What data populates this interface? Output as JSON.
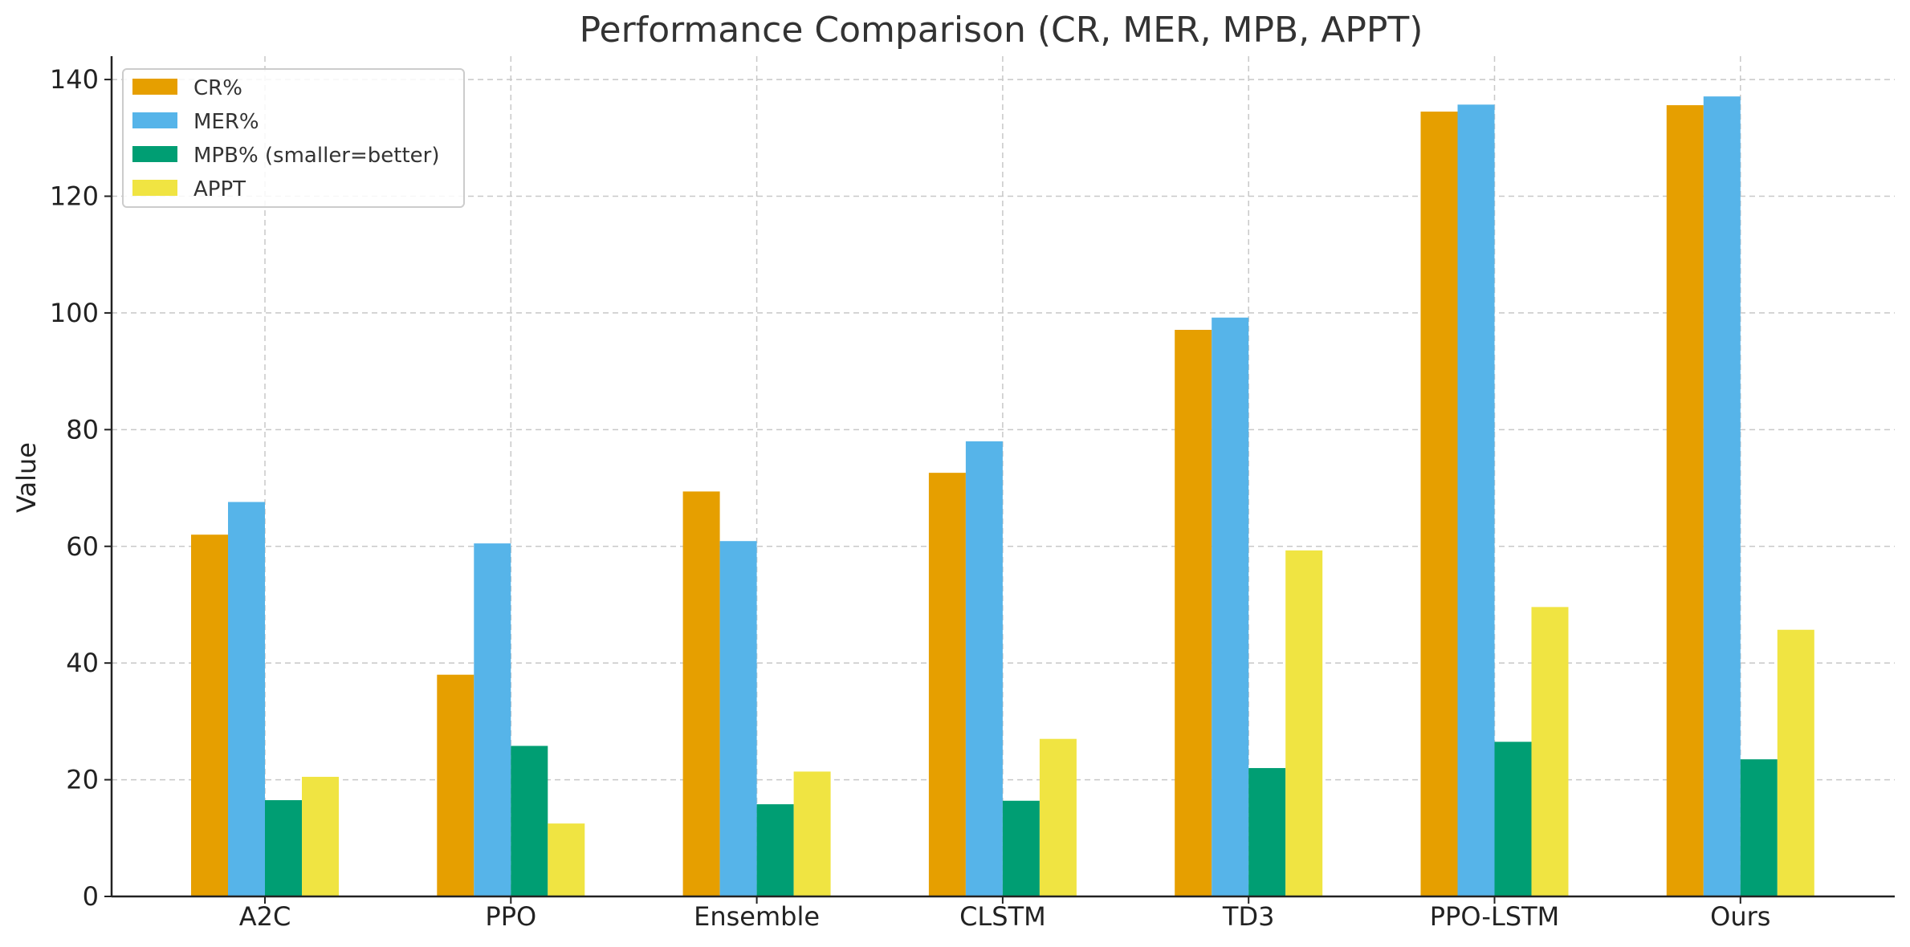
{
  "chart_data": {
    "type": "bar",
    "title": "Performance Comparison (CR, MER, MPB, APPT)",
    "xlabel": "",
    "ylabel": "Value",
    "categories": [
      "A2C",
      "PPO",
      "Ensemble",
      "CLSTM",
      "TD3",
      "PPO-LSTM",
      "Ours"
    ],
    "series": [
      {
        "name": "CR%",
        "color": "#E69F00",
        "values": [
          62,
          38,
          69.4,
          72.6,
          97.1,
          134.5,
          135.6
        ]
      },
      {
        "name": "MER%",
        "color": "#56B4E9",
        "values": [
          67.6,
          60.5,
          60.9,
          78,
          99.2,
          135.7,
          137.1
        ]
      },
      {
        "name": "MPB% (smaller=better)",
        "color": "#009E73",
        "values": [
          16.5,
          25.8,
          15.8,
          16.4,
          22,
          26.5,
          23.5
        ]
      },
      {
        "name": "APPT",
        "color": "#F0E442",
        "values": [
          20.5,
          12.5,
          21.4,
          27,
          59.3,
          49.6,
          45.7
        ]
      }
    ],
    "ylim": [
      0,
      144
    ],
    "yticks": [
      0,
      20,
      40,
      60,
      80,
      100,
      120,
      140
    ],
    "grid": true,
    "legend_position": "top-left"
  }
}
